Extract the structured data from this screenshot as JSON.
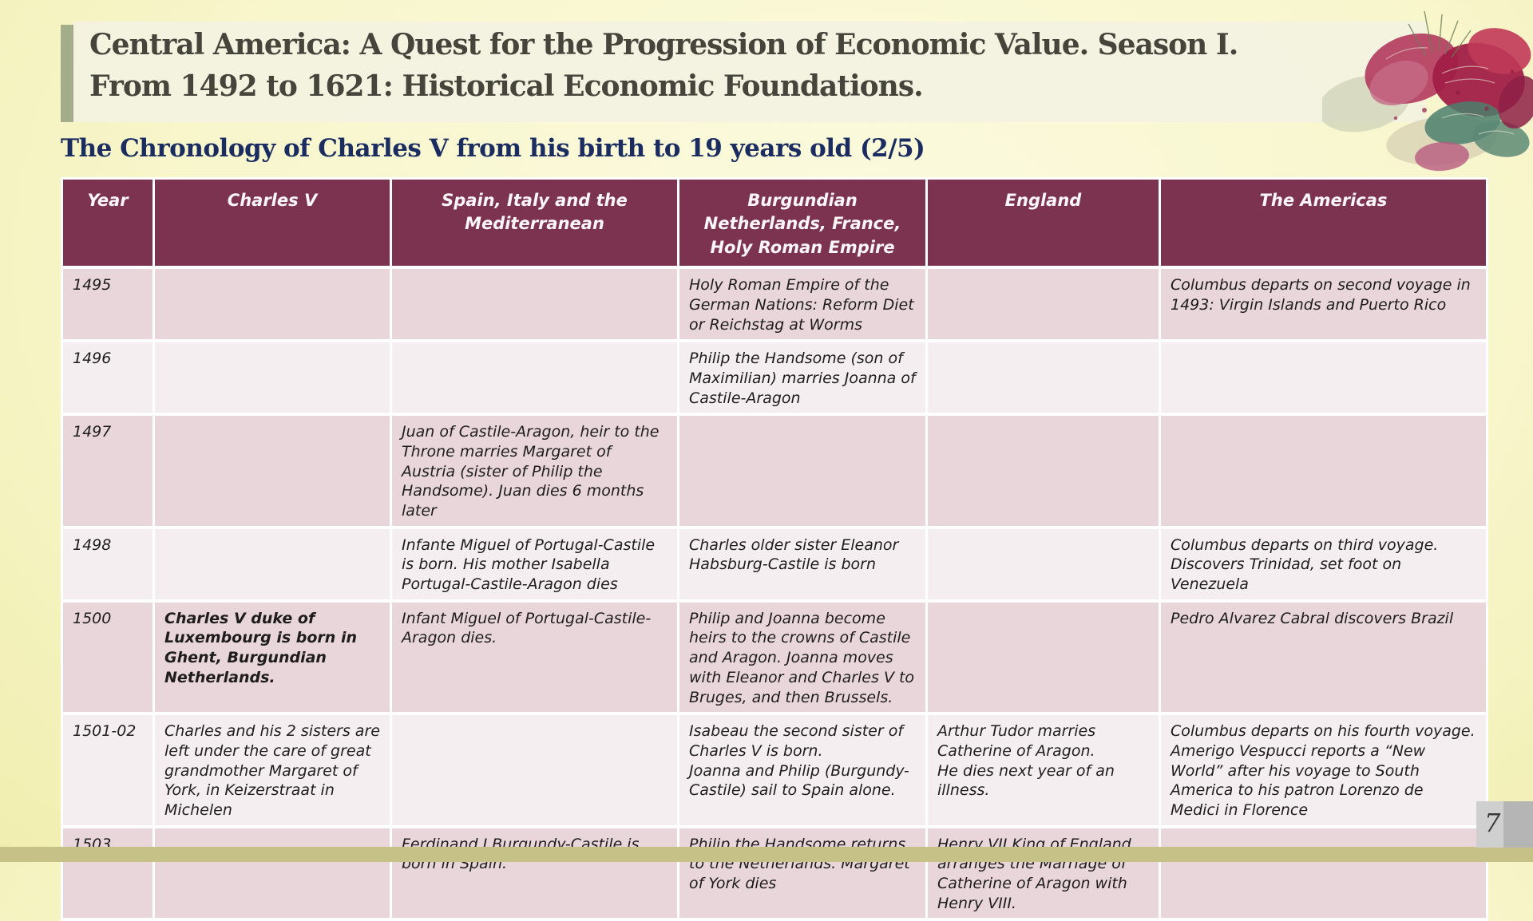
{
  "slide": {
    "title_line1": "Central America:  A Quest for the Progression of Economic Value.  Season I.",
    "title_line2": "From 1492 to 1621: Historical Economic Foundations.",
    "subtitle": "The Chronology of Charles V from his birth to 19 years old (2/5)",
    "page_number": "7"
  },
  "colors": {
    "header_bg": "#7c3350",
    "row_dark": "#e8d6db",
    "row_light": "#f5eef1",
    "accent_green": "#a3ad8a",
    "subtitle_navy": "#1b2d60",
    "title_text": "#45453c",
    "footer_khaki": "#c6c187",
    "page_bg": "#f8f6cc",
    "header_text": "#fdf6f8"
  },
  "table": {
    "columns": [
      "Year",
      "Charles V",
      "Spain, Italy and the\nMediterranean",
      "Burgundian\nNetherlands, France,\nHoly Roman Empire",
      "England",
      "The Americas"
    ],
    "rows": [
      {
        "cells": [
          "1495",
          "",
          "",
          "Holy Roman Empire of the German Nations: Reform Diet or Reichstag at Worms",
          "",
          "Columbus departs on second voyage in 1493: Virgin Islands and Puerto Rico"
        ],
        "bold": []
      },
      {
        "cells": [
          "1496",
          "",
          "",
          "Philip the Handsome (son of Maximilian) marries Joanna of Castile-Aragon",
          "",
          ""
        ],
        "bold": []
      },
      {
        "cells": [
          "1497",
          "",
          "Juan of Castile-Aragon, heir to the Throne marries Margaret of Austria (sister of Philip the Handsome). Juan dies 6 months later",
          "",
          "",
          ""
        ],
        "bold": []
      },
      {
        "cells": [
          "1498",
          "",
          "Infante Miguel of Portugal-Castile is born. His mother Isabella Portugal-Castile-Aragon dies",
          "Charles older sister Eleanor Habsburg-Castile is born",
          "",
          "Columbus departs on third voyage. Discovers Trinidad, set foot on Venezuela"
        ],
        "bold": []
      },
      {
        "cells": [
          "1500",
          "Charles V duke of Luxembourg is born in Ghent, Burgundian Netherlands.",
          "Infant Miguel of Portugal-Castile-Aragon dies.",
          "Philip and Joanna become heirs to the crowns of Castile and Aragon. Joanna moves with Eleanor and Charles V to Bruges, and then Brussels.",
          "",
          "Pedro Alvarez Cabral discovers Brazil"
        ],
        "bold": [
          1
        ]
      },
      {
        "cells": [
          "1501-02",
          "Charles and his 2 sisters are left under the care of great grandmother Margaret of York, in Keizerstraat in Michelen",
          "",
          "Isabeau the second sister of Charles V is born.\nJoanna and Philip (Burgundy-Castile) sail to Spain alone.",
          "Arthur Tudor marries Catherine of Aragon.\nHe dies next year of an illness.",
          "Columbus departs on his fourth voyage. Amerigo Vespucci reports a “New World” after his voyage to South America to his patron Lorenzo de Medici in Florence"
        ],
        "bold": []
      },
      {
        "cells": [
          "1503",
          "",
          "Ferdinand I Burgundy-Castile is born in Spain.",
          "Philip the Handsome returns to the Netherlands. Margaret of York dies",
          "Henry VII King of England arranges the Marriage of Catherine of Aragon with Henry VIII.",
          ""
        ],
        "bold": []
      }
    ]
  }
}
